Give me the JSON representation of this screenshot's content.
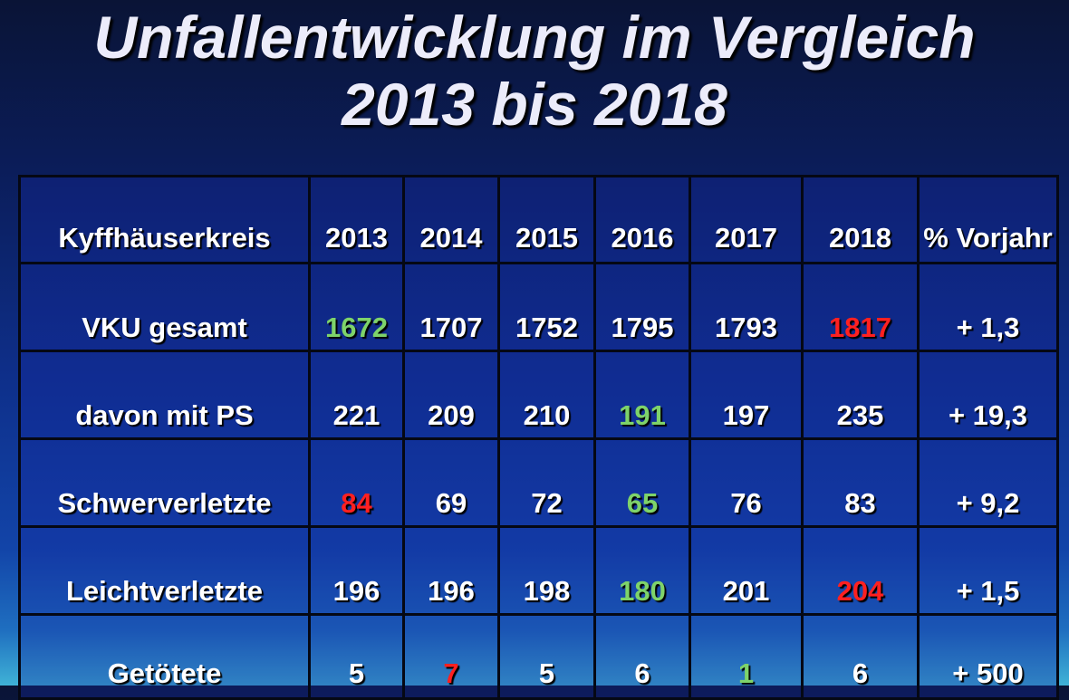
{
  "title": {
    "line1": "Unfallentwicklung im Vergleich",
    "line2": "2013 bis 2018"
  },
  "table": {
    "header": [
      "Kyffhäuserkreis",
      "2013",
      "2014",
      "2015",
      "2016",
      "2017",
      "2018",
      "% Vorjahr"
    ],
    "rows": [
      {
        "label": "VKU gesamt",
        "values": [
          "1672",
          "1707",
          "1752",
          "1795",
          "1793",
          "1817"
        ],
        "change": "+ 1,3",
        "colors": [
          "green",
          "",
          "",
          "",
          "",
          "red"
        ]
      },
      {
        "label": "davon mit PS",
        "values": [
          "221",
          "209",
          "210",
          "191",
          "197",
          "235"
        ],
        "change": "+ 19,3",
        "colors": [
          "",
          "",
          "",
          "green",
          "",
          ""
        ]
      },
      {
        "label": "Schwerverletzte",
        "values": [
          "84",
          "69",
          "72",
          "65",
          "76",
          "83"
        ],
        "change": "+ 9,2",
        "colors": [
          "red",
          "",
          "",
          "green",
          "",
          ""
        ]
      },
      {
        "label": "Leichtverletzte",
        "values": [
          "196",
          "196",
          "198",
          "180",
          "201",
          "204"
        ],
        "change": "+ 1,5",
        "colors": [
          "",
          "",
          "",
          "green",
          "",
          "red"
        ]
      },
      {
        "label": "Getötete",
        "values": [
          "5",
          "7",
          "5",
          "6",
          "1",
          "6"
        ],
        "change": "+ 500",
        "colors": [
          "",
          "red",
          "",
          "",
          "green",
          ""
        ]
      }
    ]
  },
  "colors": {
    "highlight_low": "#7ed36a",
    "highlight_high": "#ff2020",
    "text": "#ffffff",
    "title": "#ececfa"
  }
}
